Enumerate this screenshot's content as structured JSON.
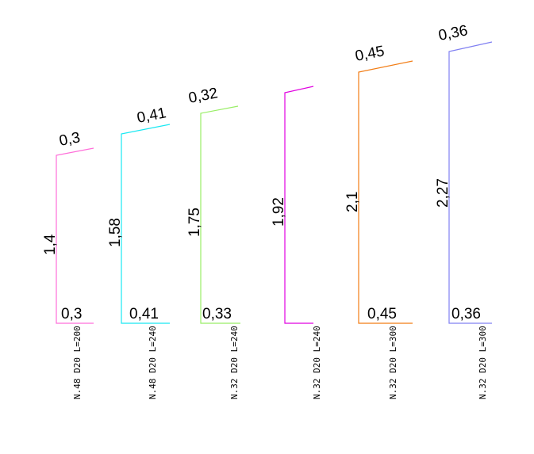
{
  "bars": [
    {
      "top_leg": "0,3",
      "height_label": "1,4",
      "bottom_leg": "0,3",
      "spec": "N.48  D20  L=200",
      "color": "#ff6ed9"
    },
    {
      "top_leg": "0,41",
      "height_label": "1,58",
      "bottom_leg": "0,41",
      "spec": "N.48  D20  L=240",
      "color": "#19e8f2"
    },
    {
      "top_leg": "0,32",
      "height_label": "1,75",
      "bottom_leg": "0,33",
      "spec": "N.32  D20  L=240",
      "color": "#99ee66"
    },
    {
      "top_leg": "",
      "height_label": "1,92",
      "bottom_leg": "",
      "spec": "N.32  D20  L=240",
      "color": "#e100e1"
    },
    {
      "top_leg": "0,45",
      "height_label": "2,1",
      "bottom_leg": "0,45",
      "spec": "N.32  D20  L=300",
      "color": "#f27d15"
    },
    {
      "top_leg": "0,36",
      "height_label": "2,27",
      "bottom_leg": "0,36",
      "spec": "N.32  D20  L=300",
      "color": "#8080f2"
    }
  ]
}
